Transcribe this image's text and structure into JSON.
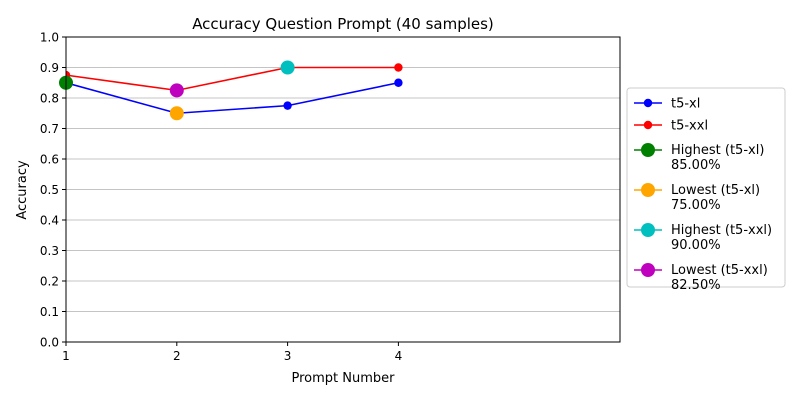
{
  "chart_data": {
    "type": "line",
    "title": "Accuracy Question Prompt (40 samples)",
    "xlabel": "Prompt Number",
    "ylabel": "Accuracy",
    "xlim": [
      1,
      6
    ],
    "ylim": [
      0,
      1.0
    ],
    "x_ticks": [
      "1",
      "2",
      "3",
      "4"
    ],
    "y_ticks": [
      "0.0",
      "0.1",
      "0.2",
      "0.3",
      "0.4",
      "0.5",
      "0.6",
      "0.7",
      "0.8",
      "0.9",
      "1.0"
    ],
    "grid": "horizontal",
    "legend_position": "outside-right",
    "series": [
      {
        "name": "t5-xl",
        "color": "#0000ff",
        "x": [
          1,
          2,
          3,
          4
        ],
        "values": [
          0.85,
          0.75,
          0.775,
          0.85
        ]
      },
      {
        "name": "t5-xxl",
        "color": "#ff0000",
        "x": [
          1,
          2,
          3,
          4
        ],
        "values": [
          0.875,
          0.825,
          0.9,
          0.9
        ]
      }
    ],
    "highlights": [
      {
        "label_line1": "Highest (t5-xl)",
        "label_line2": "85.00%",
        "color": "#008000",
        "x": 1,
        "y": 0.85
      },
      {
        "label_line1": "Lowest (t5-xl)",
        "label_line2": "75.00%",
        "color": "#ffa500",
        "x": 2,
        "y": 0.75
      },
      {
        "label_line1": "Highest (t5-xxl)",
        "label_line2": "90.00%",
        "color": "#00bfbf",
        "x": 3,
        "y": 0.9
      },
      {
        "label_line1": "Lowest (t5-xxl)",
        "label_line2": "82.50%",
        "color": "#bf00bf",
        "x": 2,
        "y": 0.825
      }
    ]
  }
}
